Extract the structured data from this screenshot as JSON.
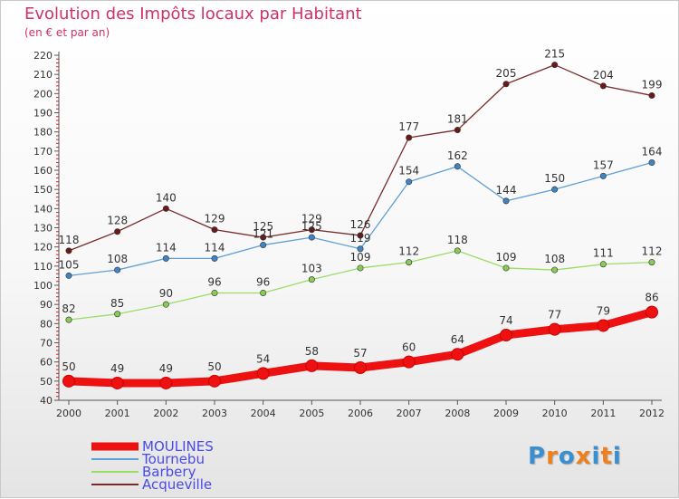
{
  "header": {
    "title": "Evolution des Impôts locaux par Habitant",
    "subtitle": "(en € et par an)"
  },
  "brand": {
    "text": "Proxiti",
    "letter_colors": [
      "#3a8fd0",
      "#f07f1e",
      "#3a8fd0",
      "#f07f1e",
      "#3a8fd0",
      "#f07f1e",
      "#3a8fd0"
    ]
  },
  "colors": {
    "title": "#d0306a",
    "axis": "#555555",
    "grid_minor": "#cc2222",
    "legend_text": "#4a4ae8"
  },
  "chart_data": {
    "type": "line",
    "categories": [
      "2000",
      "2001",
      "2002",
      "2003",
      "2004",
      "2005",
      "2006",
      "2007",
      "2008",
      "2009",
      "2010",
      "2011",
      "2012"
    ],
    "ylim": [
      40,
      220
    ],
    "yticks": [
      40,
      50,
      60,
      70,
      80,
      90,
      100,
      110,
      120,
      130,
      140,
      150,
      160,
      170,
      180,
      190,
      200,
      210,
      220
    ],
    "legend_position": "bottom-left",
    "series": [
      {
        "name": "MOULINES",
        "color": "#ee1111",
        "marker": "#ee1111",
        "width": 9,
        "values": [
          50,
          49,
          49,
          50,
          54,
          58,
          57,
          60,
          64,
          74,
          77,
          79,
          86
        ]
      },
      {
        "name": "Tournebu",
        "color": "#5e9fd6",
        "marker": "#3f84c4",
        "width": 1.3,
        "values": [
          105,
          108,
          114,
          114,
          121,
          125,
          119,
          154,
          162,
          144,
          150,
          157,
          164
        ]
      },
      {
        "name": "Barbery",
        "color": "#99dd66",
        "marker": "#88cc55",
        "width": 1.3,
        "values": [
          82,
          85,
          90,
          96,
          96,
          103,
          109,
          112,
          118,
          109,
          108,
          111,
          112
        ]
      },
      {
        "name": "Acqueville",
        "color": "#7a2a2a",
        "marker": "#6a1818",
        "width": 1.3,
        "values": [
          118,
          128,
          140,
          129,
          125,
          129,
          126,
          177,
          181,
          205,
          215,
          204,
          199
        ]
      }
    ]
  }
}
